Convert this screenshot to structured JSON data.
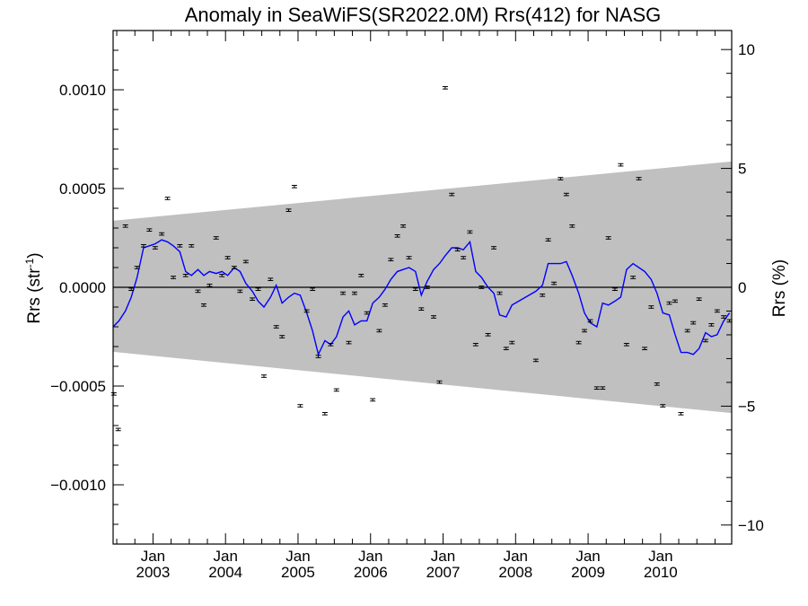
{
  "chart_data": {
    "type": "scatter",
    "title": "Anomaly in SeaWiFS(SR2022.0M) Rrs(412) for NASG",
    "ylabel_left": "Rrs (str",
    "ylabel_left_sup": "-1",
    "ylabel_left_end": ")",
    "ylabel_right": "Rrs (%)",
    "ylim_left": [
      -0.0013,
      0.0013
    ],
    "ylim_right": [
      -10.8,
      10.8
    ],
    "x_range_years": [
      2002.45,
      2010.98
    ],
    "y_ticks_left": [
      {
        "value": 0.001,
        "label": "0.0010"
      },
      {
        "value": 0.0005,
        "label": "0.0005"
      },
      {
        "value": 0.0,
        "label": "0.0000"
      },
      {
        "value": -0.0005,
        "label": "−0.0005"
      },
      {
        "value": -0.001,
        "label": "−0.0010"
      }
    ],
    "y_ticks_right": [
      {
        "value": 10,
        "label": "10"
      },
      {
        "value": 5,
        "label": "5"
      },
      {
        "value": 0,
        "label": "0"
      },
      {
        "value": -5,
        "label": "−5"
      },
      {
        "value": -10,
        "label": "−10"
      }
    ],
    "x_ticks": [
      {
        "year": 2003,
        "label_top": "Jan",
        "label_bottom": "2003"
      },
      {
        "year": 2004,
        "label_top": "Jan",
        "label_bottom": "2004"
      },
      {
        "year": 2005,
        "label_top": "Jan",
        "label_bottom": "2005"
      },
      {
        "year": 2006,
        "label_top": "Jan",
        "label_bottom": "2006"
      },
      {
        "year": 2007,
        "label_top": "Jan",
        "label_bottom": "2007"
      },
      {
        "year": 2008,
        "label_top": "Jan",
        "label_bottom": "2008"
      },
      {
        "year": 2009,
        "label_top": "Jan",
        "label_bottom": "2009"
      },
      {
        "year": 2010,
        "label_top": "Jan",
        "label_bottom": "2010"
      }
    ],
    "band": {
      "left_x": 2002.45,
      "right_x": 2010.98,
      "upper": [
        0.000337,
        0.000637
      ],
      "lower": [
        -0.000327,
        -0.000637
      ],
      "color": "#c0c0c0"
    },
    "series": [
      {
        "kind": "points_with_error",
        "color": "#000000",
        "error": 6e-06,
        "x": [
          2002.46,
          2002.52,
          2002.62,
          2002.7,
          2002.78,
          2002.87,
          2002.95,
          2003.03,
          2003.12,
          2003.2,
          2003.28,
          2003.37,
          2003.45,
          2003.53,
          2003.62,
          2003.7,
          2003.78,
          2003.87,
          2003.95,
          2004.03,
          2004.12,
          2004.2,
          2004.28,
          2004.37,
          2004.45,
          2004.53,
          2004.62,
          2004.7,
          2004.78,
          2004.87,
          2004.95,
          2005.03,
          2005.12,
          2005.2,
          2005.28,
          2005.37,
          2005.45,
          2005.53,
          2005.62,
          2005.7,
          2005.78,
          2005.87,
          2005.95,
          2006.03,
          2006.12,
          2006.2,
          2006.28,
          2006.37,
          2006.45,
          2006.53,
          2006.62,
          2006.7,
          2006.78,
          2006.87,
          2006.95,
          2007.03,
          2007.12,
          2007.2,
          2007.28,
          2007.37,
          2007.45,
          2007.53,
          2007.62,
          2007.7,
          2007.78,
          2007.87,
          2007.95,
          2008.28,
          2008.37,
          2008.45,
          2008.53,
          2008.62,
          2008.7,
          2008.78,
          2008.87,
          2008.95,
          2009.03,
          2009.12,
          2009.2,
          2009.28,
          2009.37,
          2009.45,
          2009.53,
          2009.62,
          2009.7,
          2009.78,
          2009.87,
          2009.95,
          2010.03,
          2010.12,
          2010.2,
          2010.28,
          2010.37,
          2010.45,
          2010.53,
          2010.62,
          2010.7,
          2010.78,
          2010.87,
          2010.95
        ],
        "y": [
          -0.00054,
          -0.00072,
          0.00031,
          -1e-05,
          0.0001,
          0.00021,
          0.00029,
          0.0002,
          0.00027,
          0.00045,
          5e-05,
          0.00021,
          6e-05,
          0.00021,
          -2e-05,
          -9e-05,
          1e-05,
          0.00025,
          6e-05,
          0.00015,
          0.0001,
          -2e-05,
          0.00013,
          -6e-05,
          -1e-05,
          -0.00045,
          4e-05,
          -0.0002,
          -0.00025,
          0.00039,
          0.00051,
          -0.0006,
          -0.00012,
          -1e-05,
          -0.00035,
          -0.00064,
          -0.00029,
          -0.00052,
          -3e-05,
          -0.00028,
          -3e-05,
          6e-05,
          -0.00013,
          -0.00057,
          -0.00022,
          -9e-05,
          0.00014,
          0.00026,
          0.00031,
          0.00015,
          -1e-05,
          -0.00011,
          0.0,
          -0.00015,
          -0.00048,
          0.00101,
          0.00047,
          0.00019,
          0.00015,
          0.00028,
          -0.00029,
          0.0,
          -0.00024,
          0.0002,
          -3e-05,
          -0.00031,
          -0.00028,
          -0.00037,
          -4e-05,
          0.00024,
          2e-05,
          0.00055,
          0.00047,
          0.00031,
          -0.00028,
          -0.00022,
          -0.00017,
          -0.00051,
          -0.00051,
          0.00025,
          -1e-05,
          0.00062,
          -0.00029,
          5e-05,
          0.00055,
          -0.00031,
          -0.0001,
          -0.00049,
          -0.0006,
          -8e-05,
          -7e-05,
          -0.00064,
          -0.00022,
          -0.00018,
          -6e-05,
          -0.00027,
          -0.00019,
          -0.00012,
          -0.00015,
          -0.00017
        ]
      },
      {
        "kind": "line",
        "color": "#0000ff",
        "x": [
          2002.45,
          2002.53,
          2002.62,
          2002.7,
          2002.78,
          2002.87,
          2002.95,
          2003.03,
          2003.12,
          2003.2,
          2003.28,
          2003.37,
          2003.45,
          2003.53,
          2003.62,
          2003.7,
          2003.78,
          2003.87,
          2003.95,
          2004.03,
          2004.12,
          2004.2,
          2004.28,
          2004.37,
          2004.45,
          2004.53,
          2004.62,
          2004.7,
          2004.78,
          2004.87,
          2004.95,
          2005.03,
          2005.12,
          2005.2,
          2005.28,
          2005.37,
          2005.45,
          2005.53,
          2005.62,
          2005.7,
          2005.78,
          2005.87,
          2005.95,
          2006.03,
          2006.12,
          2006.2,
          2006.28,
          2006.37,
          2006.45,
          2006.53,
          2006.62,
          2006.7,
          2006.78,
          2006.87,
          2006.95,
          2007.03,
          2007.12,
          2007.2,
          2007.28,
          2007.37,
          2007.45,
          2007.53,
          2007.62,
          2007.7,
          2007.78,
          2007.87,
          2007.95,
          2008.28,
          2008.37,
          2008.45,
          2008.53,
          2008.62,
          2008.7,
          2008.78,
          2008.87,
          2008.95,
          2009.03,
          2009.12,
          2009.2,
          2009.28,
          2009.37,
          2009.45,
          2009.53,
          2009.62,
          2009.7,
          2009.78,
          2009.87,
          2009.95,
          2010.03,
          2010.12,
          2010.2,
          2010.28,
          2010.37,
          2010.45,
          2010.53,
          2010.62,
          2010.7,
          2010.78,
          2010.87,
          2010.95
        ],
        "y": [
          -0.0002,
          -0.00017,
          -0.00012,
          -5e-05,
          5e-05,
          0.0002,
          0.00021,
          0.00022,
          0.00024,
          0.00023,
          0.00021,
          0.00018,
          8e-05,
          6e-05,
          9e-05,
          6e-05,
          8e-05,
          7e-05,
          8e-05,
          6e-05,
          0.0001,
          8e-05,
          2e-05,
          -2e-05,
          -7e-05,
          -0.0001,
          -5e-05,
          1e-05,
          -8e-05,
          -5e-05,
          -3e-05,
          -4e-05,
          -0.00013,
          -0.00022,
          -0.00034,
          -0.00027,
          -0.00029,
          -0.00025,
          -0.00015,
          -0.00012,
          -0.00019,
          -0.00017,
          -0.00017,
          -8e-05,
          -5e-05,
          -1e-05,
          4e-05,
          8e-05,
          9e-05,
          0.0001,
          8e-05,
          -4e-05,
          3e-05,
          9e-05,
          0.00012,
          0.00016,
          0.0002,
          0.0002,
          0.00019,
          0.00023,
          8e-05,
          5e-05,
          0.0,
          -3e-05,
          -0.00014,
          -0.00015,
          -9e-05,
          -2e-05,
          1e-05,
          0.00012,
          0.00012,
          0.00012,
          0.00013,
          6e-05,
          -3e-05,
          -0.00013,
          -0.00018,
          -0.0002,
          -8e-05,
          -9e-05,
          -7e-05,
          -5e-05,
          9e-05,
          0.00012,
          0.0001,
          8e-05,
          4e-05,
          -3e-05,
          -0.00013,
          -0.00014,
          -0.00024,
          -0.00033,
          -0.00033,
          -0.00034,
          -0.00031,
          -0.00023,
          -0.00025,
          -0.00024,
          -0.00017,
          -0.00013
        ]
      }
    ],
    "grid": false,
    "zero_line": true
  }
}
